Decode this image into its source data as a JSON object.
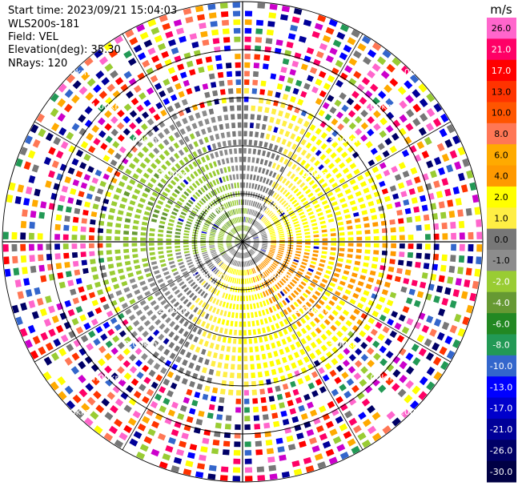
{
  "header": {
    "start_time": "Start time: 2023/09/21 15:04:03",
    "instrument": "WLS200s-181",
    "field": "Field: VEL",
    "elevation": "Elevation(deg): 35.30",
    "nrays": "NRays: 120"
  },
  "chart_data": {
    "type": "heatmap",
    "projection": "polar (PPI)",
    "field": "VEL",
    "nrays": 120,
    "max_range_km": 5,
    "range_ring_labels": [
      "1.00km",
      "2.00km",
      "3.00km",
      "4.00km",
      "5.00km"
    ],
    "range_rings_km": [
      1,
      2,
      3,
      4,
      5
    ],
    "colorbar": {
      "unit": "m/s",
      "tick_labels": [
        "26.0",
        "21.0",
        "17.0",
        "13.0",
        "10.0",
        "8.0",
        "6.0",
        "4.0",
        "2.0",
        "1.0",
        "0.0",
        "-1.0",
        "-2.0",
        "-4.0",
        "-6.0",
        "-8.0",
        "-10.0",
        "-13.0",
        "-17.0",
        "-21.0",
        "-26.0",
        "-30.0"
      ],
      "colors": [
        "#ff66cc",
        "#ff0066",
        "#ff0000",
        "#ff3300",
        "#ff5500",
        "#ff7755",
        "#ffaa00",
        "#ff9900",
        "#ffff00",
        "#ffee44",
        "#777777",
        "#8c8c8c",
        "#99cc33",
        "#669933",
        "#228822",
        "#229955",
        "#3366cc",
        "#0000ff",
        "#0000cc",
        "#000099",
        "#000066",
        "#000044"
      ]
    },
    "pattern_description_free": false,
    "regions": [
      {
        "range_km": [
          0,
          1.3
        ],
        "dominant": "olive/gray near center"
      },
      {
        "range_km": [
          0.5,
          3.0
        ],
        "sector_deg": [
          200,
          330
        ],
        "dominant": "green"
      },
      {
        "range_km": [
          0.5,
          3.0
        ],
        "sector_deg": [
          30,
          170
        ],
        "dominant": "yellow/orange"
      },
      {
        "range_km": [
          3.3,
          5.0
        ],
        "dominant": "noise"
      }
    ]
  }
}
